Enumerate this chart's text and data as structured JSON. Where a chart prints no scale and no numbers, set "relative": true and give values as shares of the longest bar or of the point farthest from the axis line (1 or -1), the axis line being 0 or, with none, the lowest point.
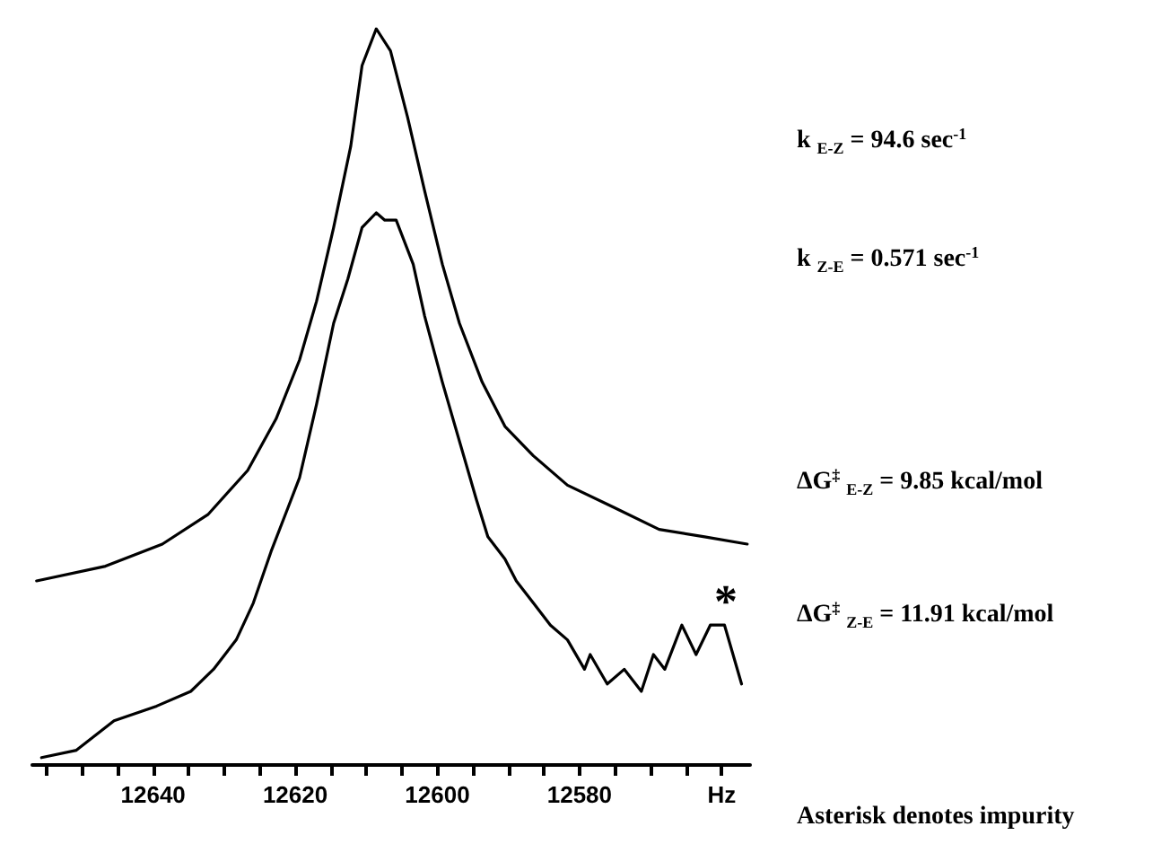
{
  "chart_data": {
    "type": "line",
    "relative": true,
    "marker": "none",
    "line_style": "solid",
    "grid": false,
    "xlim": [
      12657,
      12556
    ],
    "xticks": [
      {
        "value": 12655,
        "label": null
      },
      {
        "value": 12650,
        "label": null
      },
      {
        "value": 12645,
        "label": null
      },
      12640,
      {
        "value": 12635,
        "label": null
      },
      {
        "value": 12630,
        "label": null
      },
      {
        "value": 12625,
        "label": null
      },
      12620,
      {
        "value": 12615,
        "label": null
      },
      {
        "value": 12610,
        "label": null
      },
      {
        "value": 12605,
        "label": null
      },
      12600,
      {
        "value": 12595,
        "label": null
      },
      {
        "value": 12590,
        "label": null
      },
      {
        "value": 12585,
        "label": null
      },
      12580,
      {
        "value": 12575,
        "label": null
      },
      {
        "value": 12570,
        "label": null
      },
      {
        "value": 12565,
        "label": null
      },
      {
        "value": 12560,
        "label": "Hz"
      }
    ],
    "series": [
      {
        "color": "#000000",
        "x": [
          12656.4,
          12646.7,
          12638.7,
          12632.3,
          12626.7,
          12622.7,
          12619.4,
          12617.0,
          12614.6,
          12612.2,
          12610.6,
          12608.6,
          12606.6,
          12604.2,
          12601.8,
          12599.3,
          12596.9,
          12593.7,
          12590.5,
          12586.5,
          12581.7,
          12575.2,
          12568.8,
          12562.4,
          12556.4
        ],
        "values": [
          0.25,
          0.27,
          0.3,
          0.34,
          0.4,
          0.47,
          0.55,
          0.63,
          0.73,
          0.84,
          0.95,
          1.0,
          0.97,
          0.88,
          0.78,
          0.68,
          0.6,
          0.52,
          0.46,
          0.42,
          0.38,
          0.35,
          0.32,
          0.31,
          0.3
        ]
      },
      {
        "color": "#000000",
        "x": [
          12655.7,
          12650.8,
          12645.5,
          12639.5,
          12634.7,
          12631.5,
          12628.3,
          12625.9,
          12623.4,
          12621.0,
          12619.4,
          12617.0,
          12614.6,
          12612.6,
          12610.6,
          12608.6,
          12607.4,
          12605.8,
          12603.4,
          12601.8,
          12599.3,
          12596.9,
          12594.5,
          12592.9,
          12590.5,
          12588.9,
          12586.5,
          12584.1,
          12581.7,
          12579.3,
          12578.5,
          12576.1,
          12573.7,
          12571.3,
          12569.6,
          12568.0,
          12565.6,
          12563.6,
          12561.6,
          12559.6,
          12557.2
        ],
        "values": [
          0.01,
          0.02,
          0.06,
          0.08,
          0.1,
          0.13,
          0.17,
          0.22,
          0.29,
          0.35,
          0.39,
          0.49,
          0.6,
          0.66,
          0.73,
          0.75,
          0.74,
          0.74,
          0.68,
          0.61,
          0.52,
          0.44,
          0.36,
          0.31,
          0.28,
          0.25,
          0.22,
          0.19,
          0.17,
          0.13,
          0.15,
          0.11,
          0.13,
          0.1,
          0.15,
          0.13,
          0.19,
          0.15,
          0.19,
          0.19,
          0.11
        ]
      }
    ],
    "annotations": [
      "*",
      "k $_{E-Z}$ = 94.6 sec$^{-1}$",
      "k $_{Z-E}$ = 0.571 sec$^{-1}$",
      "ΔG$^{‡}$ $_{E-Z}$ = 9.85 kcal/mol",
      "ΔG$^{‡}$ $_{Z-E}$ = 11.91 kcal/mol",
      "Asterisk denotes impurity"
    ]
  }
}
